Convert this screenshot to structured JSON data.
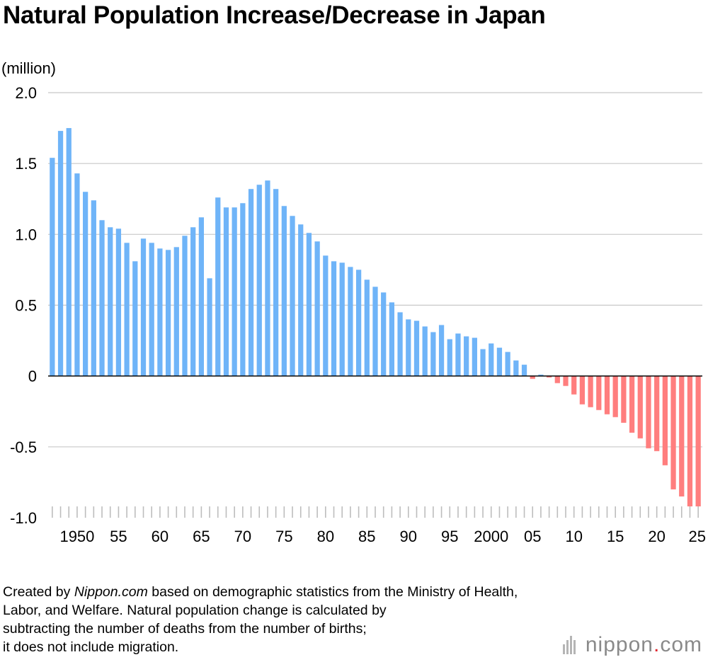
{
  "title": "Natural Population Increase/Decrease in Japan",
  "footnote": {
    "pre": "Created by ",
    "brand": "Nippon.com",
    "line1_rest": " based on demographic statistics from the Ministry of Health,",
    "line2": "Labor, and Welfare. Natural population change is calculated by",
    "line3": "subtracting the number of deaths from the number of births;",
    "line4": "it does not include migration."
  },
  "logo": {
    "main": "nippon",
    "dot": ".",
    "tld": "com"
  },
  "colors": {
    "positive": "#6fb4f8",
    "negative": "#ff7e7e",
    "grid": "#c8c8c8",
    "axis": "#000000"
  },
  "chart_data": {
    "type": "bar",
    "ylabel": "(million)",
    "ylim": [
      -1.0,
      2.0
    ],
    "yticks": [
      {
        "value": 2.0,
        "label": "2.0"
      },
      {
        "value": 1.5,
        "label": "1.5"
      },
      {
        "value": 1.0,
        "label": "1.0"
      },
      {
        "value": 0.5,
        "label": "0.5"
      },
      {
        "value": 0,
        "label": "0"
      },
      {
        "value": -0.5,
        "label": "-0.5"
      },
      {
        "value": -1.0,
        "label": "-1.0"
      }
    ],
    "xticks": [
      {
        "year": 1950,
        "label": "1950"
      },
      {
        "year": 1955,
        "label": "55"
      },
      {
        "year": 1960,
        "label": "60"
      },
      {
        "year": 1965,
        "label": "65"
      },
      {
        "year": 1970,
        "label": "70"
      },
      {
        "year": 1975,
        "label": "75"
      },
      {
        "year": 1980,
        "label": "80"
      },
      {
        "year": 1985,
        "label": "85"
      },
      {
        "year": 1990,
        "label": "90"
      },
      {
        "year": 1995,
        "label": "95"
      },
      {
        "year": 2000,
        "label": "2000"
      },
      {
        "year": 2005,
        "label": "05"
      },
      {
        "year": 2010,
        "label": "10"
      },
      {
        "year": 2015,
        "label": "15"
      },
      {
        "year": 2020,
        "label": "20"
      },
      {
        "year": 2025,
        "label": "25"
      }
    ],
    "grid": true,
    "legend": "none",
    "x": [
      1947,
      1948,
      1949,
      1950,
      1951,
      1952,
      1953,
      1954,
      1955,
      1956,
      1957,
      1958,
      1959,
      1960,
      1961,
      1962,
      1963,
      1964,
      1965,
      1966,
      1967,
      1968,
      1969,
      1970,
      1971,
      1972,
      1973,
      1974,
      1975,
      1976,
      1977,
      1978,
      1979,
      1980,
      1981,
      1982,
      1983,
      1984,
      1985,
      1986,
      1987,
      1988,
      1989,
      1990,
      1991,
      1992,
      1993,
      1994,
      1995,
      1996,
      1997,
      1998,
      1999,
      2000,
      2001,
      2002,
      2003,
      2004,
      2005,
      2006,
      2007,
      2008,
      2009,
      2010,
      2011,
      2012,
      2013,
      2014,
      2015,
      2016,
      2017,
      2018,
      2019,
      2020,
      2021,
      2022,
      2023,
      2024,
      2025
    ],
    "values": [
      1.54,
      1.73,
      1.75,
      1.43,
      1.3,
      1.24,
      1.1,
      1.05,
      1.04,
      0.94,
      0.81,
      0.97,
      0.94,
      0.9,
      0.89,
      0.91,
      0.99,
      1.05,
      1.12,
      0.69,
      1.26,
      1.19,
      1.19,
      1.22,
      1.32,
      1.35,
      1.38,
      1.32,
      1.2,
      1.13,
      1.07,
      1.01,
      0.95,
      0.85,
      0.81,
      0.8,
      0.77,
      0.75,
      0.68,
      0.63,
      0.59,
      0.52,
      0.45,
      0.4,
      0.39,
      0.35,
      0.31,
      0.36,
      0.26,
      0.3,
      0.28,
      0.27,
      0.19,
      0.23,
      0.2,
      0.17,
      0.11,
      0.08,
      -0.02,
      0.01,
      -0.01,
      -0.05,
      -0.07,
      -0.13,
      -0.2,
      -0.22,
      -0.24,
      -0.27,
      -0.29,
      -0.33,
      -0.4,
      -0.44,
      -0.51,
      -0.53,
      -0.63,
      -0.8,
      -0.85,
      -0.92,
      -0.92
    ]
  }
}
